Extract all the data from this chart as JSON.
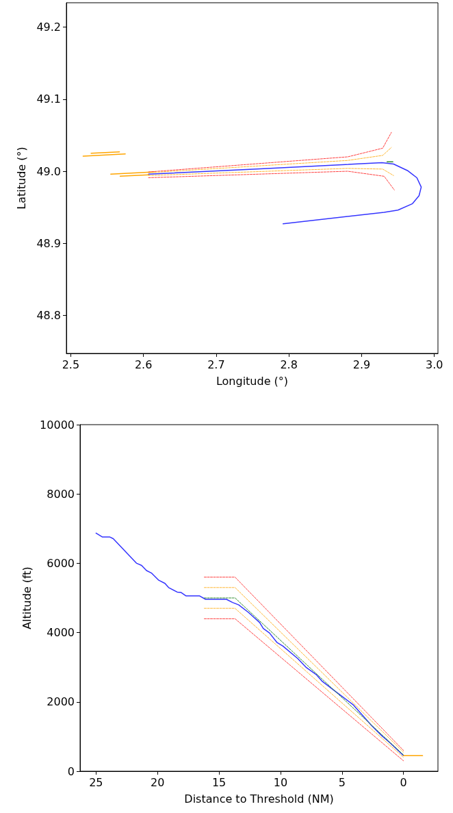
{
  "chart_data": [
    {
      "type": "line",
      "xlabel": "Longitude (°)",
      "ylabel": "Latitude (°)",
      "xlim": [
        2.494,
        3.005
      ],
      "ylim": [
        48.747,
        49.234
      ],
      "xticks": [
        2.5,
        2.6,
        2.7,
        2.8,
        2.9,
        {
          "value": 3,
          "label": "3.0"
        }
      ],
      "yticks": [
        48.8,
        48.9,
        {
          "value": 49,
          "label": "49.0"
        },
        49.1,
        49.2
      ],
      "series": [
        {
          "color": "#ff4040",
          "line_style": "dashed",
          "x": [
            2.607,
            2.881,
            2.929,
            2.941
          ],
          "values": [
            48.999,
            49.02,
            49.032,
            49.054
          ]
        },
        {
          "color": "#ffb732",
          "line_style": "dashed",
          "x": [
            2.607,
            2.881,
            2.929,
            2.941
          ],
          "values": [
            48.998,
            49.015,
            49.022,
            49.033
          ]
        },
        {
          "color": "#ffb732",
          "line_style": "dashed",
          "x": [
            2.607,
            2.881,
            2.929,
            2.944
          ],
          "values": [
            48.994,
            49.004,
            49.003,
            48.994
          ]
        },
        {
          "color": "#ff4040",
          "line_style": "dashed",
          "x": [
            2.607,
            2.881,
            2.931,
            2.945
          ],
          "values": [
            48.991,
            49.0,
            48.993,
            48.974
          ]
        },
        {
          "color": "#2e8b2e",
          "line_style": "solid",
          "x": [
            2.935,
            2.943
          ],
          "values": [
            49.013,
            49.013
          ]
        },
        {
          "color": "#3333ff",
          "line_style": "solid",
          "x": [
            2.607,
            2.756,
            2.928,
            2.944,
            2.963,
            2.976,
            2.982,
            2.979,
            2.97,
            2.95,
            2.931,
            2.792
          ],
          "values": [
            48.996,
            49.003,
            49.012,
            49.01,
            49.001,
            48.991,
            48.978,
            48.966,
            48.955,
            48.946,
            48.943,
            48.927
          ]
        },
        {
          "color": "#ffa500",
          "line_style": "solid",
          "x": [
            2.517,
            2.575
          ],
          "values": [
            49.021,
            49.024
          ]
        },
        {
          "color": "#ffa500",
          "line_style": "solid",
          "x": [
            2.528,
            2.567
          ],
          "values": [
            49.025,
            49.027
          ]
        },
        {
          "color": "#ffa500",
          "line_style": "solid",
          "x": [
            2.555,
            2.615
          ],
          "values": [
            48.996,
            48.999
          ]
        },
        {
          "color": "#ffa500",
          "line_style": "solid",
          "x": [
            2.568,
            2.607
          ],
          "values": [
            48.993,
            48.995
          ]
        }
      ]
    },
    {
      "type": "line",
      "xlabel": "Distance to Threshold (NM)",
      "ylabel": "Altitude (ft)",
      "xlim": [
        26.3,
        -2.8
      ],
      "ylim": [
        0,
        10000
      ],
      "xticks": [
        25,
        20,
        15,
        10,
        5,
        0
      ],
      "yticks": [
        0,
        2000,
        4000,
        6000,
        8000,
        10000
      ],
      "series": [
        {
          "color": "#ff4040",
          "line_style": "dashed",
          "x": [
            16.2,
            13.7,
            0
          ],
          "values": [
            5600,
            5600,
            600
          ]
        },
        {
          "color": "#ffb732",
          "line_style": "dashed",
          "x": [
            16.2,
            13.7,
            0
          ],
          "values": [
            5300,
            5300,
            550
          ]
        },
        {
          "color": "#2e8b2e",
          "line_style": "dashed",
          "x": [
            16.2,
            13.7,
            0
          ],
          "values": [
            5000,
            5000,
            470
          ]
        },
        {
          "color": "#ffb732",
          "line_style": "dashed",
          "x": [
            16.2,
            13.7,
            0
          ],
          "values": [
            4700,
            4700,
            400
          ]
        },
        {
          "color": "#ff4040",
          "line_style": "dashed",
          "x": [
            16.2,
            13.7,
            0
          ],
          "values": [
            4400,
            4400,
            300
          ]
        },
        {
          "color": "#3333ff",
          "line_style": "solid",
          "x": [
            25,
            24.5,
            23.9,
            23.6,
            21.7,
            21.3,
            20.9,
            20.5,
            19.9,
            19.4,
            19.1,
            18.4,
            18.1,
            17.7,
            16.6,
            16.1,
            14.4,
            13.9,
            13.4,
            12.6,
            11.7,
            11.4,
            10.9,
            10.3,
            9.8,
            8.6,
            7.9,
            7.1,
            6.6,
            5.6,
            4.1,
            2.6,
            1.75,
            1.1,
            0
          ],
          "values": [
            6870,
            6760,
            6760,
            6710,
            6000,
            5940,
            5790,
            5720,
            5510,
            5420,
            5300,
            5170,
            5160,
            5060,
            5060,
            4960,
            4960,
            4870,
            4800,
            4580,
            4290,
            4120,
            3990,
            3720,
            3610,
            3250,
            2990,
            2790,
            2590,
            2320,
            1920,
            1320,
            1020,
            820,
            450
          ]
        },
        {
          "color": "#ffa500",
          "line_style": "solid",
          "x": [
            0,
            -1.55
          ],
          "values": [
            450,
            450
          ]
        }
      ]
    }
  ]
}
